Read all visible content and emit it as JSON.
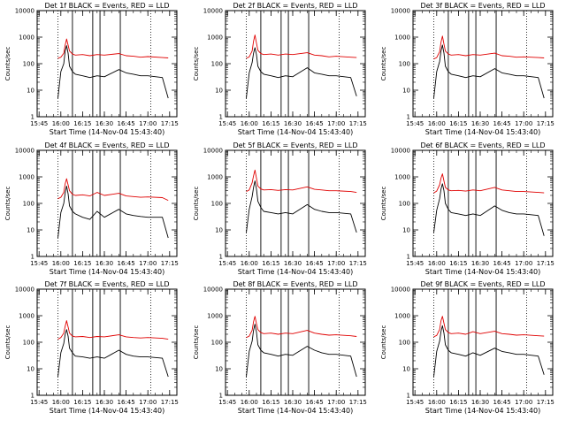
{
  "chart_data": [
    {
      "type": "line",
      "title": "Det 1f BLACK = Events, RED = LLD",
      "xlabel": "Start Time (14-Nov-04 15:43:40)",
      "ylabel": "Counts/sec",
      "x_ticks": [
        "15:45",
        "16:00",
        "16:15",
        "16:30",
        "16:45",
        "17:00",
        "17:15"
      ],
      "y_ticks": [
        "1",
        "10",
        "100",
        "1000",
        "10000"
      ],
      "xlim": [
        "15:43:40",
        "17:20:00"
      ],
      "ylim": [
        1,
        10000
      ],
      "y_scale": "log",
      "dotted_lines": [
        "15:58",
        "17:02"
      ],
      "solid_lines": [
        "16:08",
        "16:22",
        "16:27",
        "16:41"
      ],
      "x": [
        "15:58",
        "16:00",
        "16:02",
        "16:03",
        "16:04",
        "16:05",
        "16:06",
        "16:08",
        "16:10",
        "16:15",
        "16:20",
        "16:25",
        "16:30",
        "16:40",
        "16:45",
        "16:50",
        "16:55",
        "17:00",
        "17:10",
        "17:14"
      ],
      "series": [
        {
          "color": "#e00000",
          "values": [
            160,
            175,
            250,
            500,
            850,
            500,
            300,
            230,
            210,
            220,
            200,
            220,
            210,
            240,
            200,
            190,
            175,
            185,
            170,
            165
          ]
        },
        {
          "color": "#000000",
          "values": [
            5,
            50,
            100,
            300,
            480,
            250,
            80,
            50,
            40,
            35,
            30,
            35,
            32,
            60,
            45,
            40,
            35,
            35,
            30,
            5
          ]
        }
      ]
    },
    {
      "type": "line",
      "title": "Det 2f BLACK = Events, RED = LLD",
      "xlabel": "Start Time (14-Nov-04 15:43:40)",
      "ylabel": "Counts/sec",
      "x_ticks": [
        "15:45",
        "16:00",
        "16:15",
        "16:30",
        "16:45",
        "17:00",
        "17:15"
      ],
      "y_ticks": [
        "1",
        "10",
        "100",
        "1000",
        "10000"
      ],
      "xlim": [
        "15:43:40",
        "17:20:00"
      ],
      "ylim": [
        1,
        10000
      ],
      "y_scale": "log",
      "dotted_lines": [
        "15:58",
        "17:02"
      ],
      "solid_lines": [
        "16:08",
        "16:22",
        "16:27",
        "16:41"
      ],
      "x": [
        "15:58",
        "16:00",
        "16:02",
        "16:03",
        "16:04",
        "16:05",
        "16:06",
        "16:08",
        "16:10",
        "16:15",
        "16:20",
        "16:25",
        "16:30",
        "16:40",
        "16:45",
        "16:50",
        "16:55",
        "17:00",
        "17:10",
        "17:14"
      ],
      "series": [
        {
          "color": "#e00000",
          "values": [
            160,
            180,
            300,
            700,
            1200,
            600,
            320,
            240,
            220,
            230,
            210,
            230,
            220,
            260,
            210,
            200,
            180,
            190,
            175,
            170
          ]
        },
        {
          "color": "#000000",
          "values": [
            5,
            45,
            110,
            250,
            400,
            220,
            80,
            50,
            40,
            35,
            30,
            35,
            32,
            70,
            45,
            40,
            35,
            35,
            30,
            6
          ]
        }
      ]
    },
    {
      "type": "line",
      "title": "Det 3f BLACK = Events, RED = LLD",
      "xlabel": "Start Time (14-Nov-04 15:43:40)",
      "ylabel": "Counts/sec",
      "x_ticks": [
        "15:45",
        "16:00",
        "16:15",
        "16:30",
        "16:45",
        "17:00",
        "17:15"
      ],
      "y_ticks": [
        "1",
        "10",
        "100",
        "1000",
        "10000"
      ],
      "xlim": [
        "15:43:40",
        "17:20:00"
      ],
      "ylim": [
        1,
        10000
      ],
      "y_scale": "log",
      "dotted_lines": [
        "15:58",
        "17:02"
      ],
      "solid_lines": [
        "16:08",
        "16:22",
        "16:27",
        "16:41"
      ],
      "x": [
        "15:58",
        "16:00",
        "16:02",
        "16:03",
        "16:04",
        "16:05",
        "16:06",
        "16:08",
        "16:10",
        "16:15",
        "16:20",
        "16:25",
        "16:30",
        "16:40",
        "16:45",
        "16:50",
        "16:55",
        "17:00",
        "17:10",
        "17:14"
      ],
      "series": [
        {
          "color": "#e00000",
          "values": [
            150,
            170,
            280,
            650,
            1100,
            550,
            300,
            230,
            210,
            220,
            200,
            220,
            210,
            250,
            200,
            190,
            175,
            180,
            170,
            165
          ]
        },
        {
          "color": "#000000",
          "values": [
            5,
            50,
            120,
            300,
            500,
            250,
            80,
            50,
            40,
            35,
            30,
            35,
            32,
            65,
            45,
            40,
            35,
            35,
            30,
            5
          ]
        }
      ]
    },
    {
      "type": "line",
      "title": "Det 4f BLACK = Events, RED = LLD",
      "xlabel": "Start Time (14-Nov-04 15:43:40)",
      "ylabel": "Counts/sec",
      "x_ticks": [
        "15:45",
        "16:00",
        "16:15",
        "16:30",
        "16:45",
        "17:00",
        "17:15"
      ],
      "y_ticks": [
        "1",
        "10",
        "100",
        "1000",
        "10000"
      ],
      "xlim": [
        "15:43:40",
        "17:20:00"
      ],
      "ylim": [
        1,
        10000
      ],
      "y_scale": "log",
      "dotted_lines": [
        "15:58",
        "17:02"
      ],
      "solid_lines": [
        "16:08",
        "16:22",
        "16:27",
        "16:41"
      ],
      "x": [
        "15:58",
        "16:00",
        "16:02",
        "16:03",
        "16:04",
        "16:05",
        "16:06",
        "16:08",
        "16:10",
        "16:15",
        "16:20",
        "16:25",
        "16:30",
        "16:40",
        "16:45",
        "16:50",
        "16:55",
        "17:00",
        "17:10",
        "17:14"
      ],
      "series": [
        {
          "color": "#e00000",
          "values": [
            150,
            170,
            260,
            550,
            850,
            500,
            300,
            220,
            200,
            210,
            190,
            260,
            200,
            240,
            190,
            180,
            170,
            175,
            165,
            130
          ]
        },
        {
          "color": "#000000",
          "values": [
            5,
            45,
            100,
            250,
            450,
            230,
            80,
            50,
            40,
            30,
            25,
            50,
            30,
            60,
            40,
            35,
            32,
            30,
            30,
            5
          ]
        }
      ]
    },
    {
      "type": "line",
      "title": "Det 5f BLACK = Events, RED = LLD",
      "xlabel": "Start Time (14-Nov-04 15:43:40)",
      "ylabel": "Counts/sec",
      "x_ticks": [
        "15:45",
        "16:00",
        "16:15",
        "16:30",
        "16:45",
        "17:00",
        "17:15"
      ],
      "y_ticks": [
        "1",
        "10",
        "100",
        "1000",
        "10000"
      ],
      "xlim": [
        "15:43:40",
        "17:20:00"
      ],
      "ylim": [
        1,
        10000
      ],
      "y_scale": "log",
      "dotted_lines": [
        "15:58",
        "17:02"
      ],
      "solid_lines": [
        "16:08",
        "16:22",
        "16:27",
        "16:41"
      ],
      "x": [
        "15:58",
        "16:00",
        "16:02",
        "16:03",
        "16:04",
        "16:05",
        "16:06",
        "16:08",
        "16:10",
        "16:15",
        "16:20",
        "16:25",
        "16:30",
        "16:40",
        "16:45",
        "16:50",
        "16:55",
        "17:00",
        "17:10",
        "17:14"
      ],
      "series": [
        {
          "color": "#e00000",
          "values": [
            280,
            320,
            600,
            1100,
            1800,
            900,
            450,
            350,
            320,
            330,
            310,
            330,
            320,
            420,
            340,
            320,
            300,
            300,
            280,
            260
          ]
        },
        {
          "color": "#000000",
          "values": [
            8,
            60,
            180,
            400,
            700,
            350,
            120,
            70,
            50,
            45,
            40,
            45,
            40,
            90,
            60,
            50,
            45,
            45,
            40,
            8
          ]
        }
      ]
    },
    {
      "type": "line",
      "title": "Det 6f BLACK = Events, RED = LLD",
      "xlabel": "Start Time (14-Nov-04 15:43:40)",
      "ylabel": "Counts/sec",
      "x_ticks": [
        "15:45",
        "16:00",
        "16:15",
        "16:30",
        "16:45",
        "17:00",
        "17:15"
      ],
      "y_ticks": [
        "1",
        "10",
        "100",
        "1000",
        "10000"
      ],
      "xlim": [
        "15:43:40",
        "17:20:00"
      ],
      "ylim": [
        1,
        10000
      ],
      "y_scale": "log",
      "dotted_lines": [
        "15:58",
        "17:02"
      ],
      "solid_lines": [
        "16:08",
        "16:22",
        "16:27",
        "16:41"
      ],
      "x": [
        "15:58",
        "16:00",
        "16:02",
        "16:03",
        "16:04",
        "16:05",
        "16:06",
        "16:08",
        "16:10",
        "16:15",
        "16:20",
        "16:25",
        "16:30",
        "16:40",
        "16:45",
        "16:50",
        "16:55",
        "17:00",
        "17:10",
        "17:14"
      ],
      "series": [
        {
          "color": "#e00000",
          "values": [
            250,
            290,
            500,
            900,
            1300,
            700,
            400,
            320,
            300,
            310,
            290,
            320,
            300,
            400,
            320,
            300,
            280,
            280,
            260,
            250
          ]
        },
        {
          "color": "#000000",
          "values": [
            8,
            55,
            150,
            350,
            550,
            300,
            100,
            60,
            45,
            40,
            35,
            40,
            35,
            80,
            55,
            45,
            40,
            40,
            35,
            6
          ]
        }
      ]
    },
    {
      "type": "line",
      "title": "Det 7f BLACK = Events, RED = LLD",
      "xlabel": "Start Time (14-Nov-04 15:43:40)",
      "ylabel": "Counts/sec",
      "x_ticks": [
        "15:45",
        "16:00",
        "16:15",
        "16:30",
        "16:45",
        "17:00",
        "17:15"
      ],
      "y_ticks": [
        "1",
        "10",
        "100",
        "1000",
        "10000"
      ],
      "xlim": [
        "15:43:40",
        "17:20:00"
      ],
      "ylim": [
        1,
        10000
      ],
      "y_scale": "log",
      "dotted_lines": [
        "15:58",
        "17:02"
      ],
      "solid_lines": [
        "16:08",
        "16:22",
        "16:27",
        "16:41"
      ],
      "x": [
        "15:58",
        "16:00",
        "16:02",
        "16:03",
        "16:04",
        "16:05",
        "16:06",
        "16:08",
        "16:10",
        "16:15",
        "16:20",
        "16:25",
        "16:30",
        "16:40",
        "16:45",
        "16:50",
        "16:55",
        "17:00",
        "17:10",
        "17:14"
      ],
      "series": [
        {
          "color": "#e00000",
          "values": [
            130,
            150,
            220,
            400,
            650,
            380,
            220,
            170,
            160,
            165,
            150,
            165,
            160,
            190,
            160,
            150,
            145,
            150,
            140,
            130
          ]
        },
        {
          "color": "#000000",
          "values": [
            5,
            40,
            90,
            200,
            300,
            170,
            60,
            40,
            30,
            28,
            25,
            28,
            25,
            50,
            35,
            30,
            28,
            28,
            25,
            5
          ]
        }
      ]
    },
    {
      "type": "line",
      "title": "Det 8f BLACK = Events, RED = LLD",
      "xlabel": "Start Time (14-Nov-04 15:43:40)",
      "ylabel": "Counts/sec",
      "x_ticks": [
        "15:45",
        "16:00",
        "16:15",
        "16:30",
        "16:45",
        "17:00",
        "17:15"
      ],
      "y_ticks": [
        "1",
        "10",
        "100",
        "1000",
        "10000"
      ],
      "xlim": [
        "15:43:40",
        "17:20:00"
      ],
      "ylim": [
        1,
        10000
      ],
      "y_scale": "log",
      "dotted_lines": [
        "15:58",
        "17:02"
      ],
      "solid_lines": [
        "16:08",
        "16:22",
        "16:27",
        "16:41"
      ],
      "x": [
        "15:58",
        "16:00",
        "16:02",
        "16:03",
        "16:04",
        "16:05",
        "16:06",
        "16:08",
        "16:10",
        "16:15",
        "16:20",
        "16:25",
        "16:30",
        "16:40",
        "16:45",
        "16:50",
        "16:55",
        "17:00",
        "17:10",
        "17:14"
      ],
      "series": [
        {
          "color": "#e00000",
          "values": [
            150,
            170,
            280,
            600,
            950,
            500,
            300,
            230,
            210,
            220,
            200,
            220,
            210,
            280,
            220,
            200,
            185,
            190,
            175,
            165
          ]
        },
        {
          "color": "#000000",
          "values": [
            5,
            45,
            110,
            280,
            480,
            240,
            80,
            50,
            40,
            35,
            30,
            35,
            32,
            70,
            50,
            40,
            35,
            35,
            30,
            5
          ]
        }
      ]
    },
    {
      "type": "line",
      "title": "Det 9f BLACK = Events, RED = LLD",
      "xlabel": "Start Time (14-Nov-04 15:43:40)",
      "ylabel": "Counts/sec",
      "x_ticks": [
        "15:45",
        "16:00",
        "16:15",
        "16:30",
        "16:45",
        "17:00",
        "17:15"
      ],
      "y_ticks": [
        "1",
        "10",
        "100",
        "1000",
        "10000"
      ],
      "xlim": [
        "15:43:40",
        "17:20:00"
      ],
      "ylim": [
        1,
        10000
      ],
      "y_scale": "log",
      "dotted_lines": [
        "15:58",
        "17:02"
      ],
      "solid_lines": [
        "16:08",
        "16:22",
        "16:27",
        "16:41"
      ],
      "x": [
        "15:58",
        "16:00",
        "16:02",
        "16:03",
        "16:04",
        "16:05",
        "16:06",
        "16:08",
        "16:10",
        "16:15",
        "16:20",
        "16:25",
        "16:30",
        "16:40",
        "16:45",
        "16:50",
        "16:55",
        "17:00",
        "17:10",
        "17:14"
      ],
      "series": [
        {
          "color": "#e00000",
          "values": [
            160,
            180,
            300,
            650,
            950,
            520,
            300,
            230,
            210,
            220,
            200,
            250,
            210,
            260,
            210,
            200,
            185,
            190,
            175,
            170
          ]
        },
        {
          "color": "#000000",
          "values": [
            5,
            45,
            110,
            260,
            420,
            220,
            80,
            50,
            40,
            35,
            30,
            40,
            32,
            60,
            45,
            40,
            35,
            35,
            30,
            6
          ]
        }
      ]
    }
  ]
}
